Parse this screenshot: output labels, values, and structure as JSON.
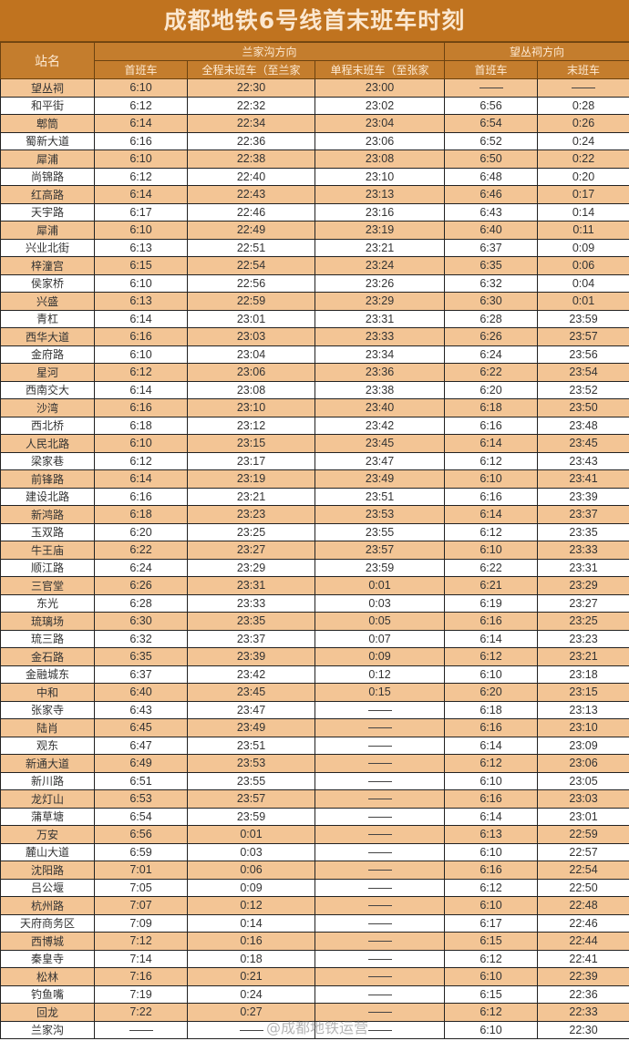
{
  "title": "成都地铁6号线首末班车时刻",
  "header": {
    "station": "站名",
    "dir1": "兰家沟方向",
    "dir2": "望丛祠方向",
    "dir1_first": "首班车",
    "dir1_last_full": "全程末班车（至兰家",
    "dir1_last_short": "单程末班车（至张家",
    "dir2_first": "首班车",
    "dir2_last": "末班车"
  },
  "colors": {
    "title_bg": "#c0731f",
    "header_bg": "#c47d2d",
    "row_alt": "#f3c595"
  },
  "rows": [
    [
      "望丛祠",
      "6:10",
      "22:30",
      "23:00",
      "—",
      "—"
    ],
    [
      "和平街",
      "6:12",
      "22:32",
      "23:02",
      "6:56",
      "0:28"
    ],
    [
      "郫筒",
      "6:14",
      "22:34",
      "23:04",
      "6:54",
      "0:26"
    ],
    [
      "蜀新大道",
      "6:16",
      "22:36",
      "23:06",
      "6:52",
      "0:24"
    ],
    [
      "犀浦",
      "6:10",
      "22:38",
      "23:08",
      "6:50",
      "0:22"
    ],
    [
      "尚锦路",
      "6:12",
      "22:40",
      "23:10",
      "6:48",
      "0:20"
    ],
    [
      "红高路",
      "6:14",
      "22:43",
      "23:13",
      "6:46",
      "0:17"
    ],
    [
      "天宇路",
      "6:17",
      "22:46",
      "23:16",
      "6:43",
      "0:14"
    ],
    [
      "犀浦",
      "6:10",
      "22:49",
      "23:19",
      "6:40",
      "0:11"
    ],
    [
      "兴业北街",
      "6:13",
      "22:51",
      "23:21",
      "6:37",
      "0:09"
    ],
    [
      "梓潼宫",
      "6:15",
      "22:54",
      "23:24",
      "6:35",
      "0:06"
    ],
    [
      "侯家桥",
      "6:10",
      "22:56",
      "23:26",
      "6:32",
      "0:04"
    ],
    [
      "兴盛",
      "6:13",
      "22:59",
      "23:29",
      "6:30",
      "0:01"
    ],
    [
      "青杠",
      "6:14",
      "23:01",
      "23:31",
      "6:28",
      "23:59"
    ],
    [
      "西华大道",
      "6:16",
      "23:03",
      "23:33",
      "6:26",
      "23:57"
    ],
    [
      "金府路",
      "6:10",
      "23:04",
      "23:34",
      "6:24",
      "23:56"
    ],
    [
      "星河",
      "6:12",
      "23:06",
      "23:36",
      "6:22",
      "23:54"
    ],
    [
      "西南交大",
      "6:14",
      "23:08",
      "23:38",
      "6:20",
      "23:52"
    ],
    [
      "沙湾",
      "6:16",
      "23:10",
      "23:40",
      "6:18",
      "23:50"
    ],
    [
      "西北桥",
      "6:18",
      "23:12",
      "23:42",
      "6:16",
      "23:48"
    ],
    [
      "人民北路",
      "6:10",
      "23:15",
      "23:45",
      "6:14",
      "23:45"
    ],
    [
      "梁家巷",
      "6:12",
      "23:17",
      "23:47",
      "6:12",
      "23:43"
    ],
    [
      "前锋路",
      "6:14",
      "23:19",
      "23:49",
      "6:10",
      "23:41"
    ],
    [
      "建设北路",
      "6:16",
      "23:21",
      "23:51",
      "6:16",
      "23:39"
    ],
    [
      "新鸿路",
      "6:18",
      "23:23",
      "23:53",
      "6:14",
      "23:37"
    ],
    [
      "玉双路",
      "6:20",
      "23:25",
      "23:55",
      "6:12",
      "23:35"
    ],
    [
      "牛王庙",
      "6:22",
      "23:27",
      "23:57",
      "6:10",
      "23:33"
    ],
    [
      "顺江路",
      "6:24",
      "23:29",
      "23:59",
      "6:22",
      "23:31"
    ],
    [
      "三官堂",
      "6:26",
      "23:31",
      "0:01",
      "6:21",
      "23:29"
    ],
    [
      "东光",
      "6:28",
      "23:33",
      "0:03",
      "6:19",
      "23:27"
    ],
    [
      "琉璃场",
      "6:30",
      "23:35",
      "0:05",
      "6:16",
      "23:25"
    ],
    [
      "琉三路",
      "6:32",
      "23:37",
      "0:07",
      "6:14",
      "23:23"
    ],
    [
      "金石路",
      "6:35",
      "23:39",
      "0:09",
      "6:12",
      "23:21"
    ],
    [
      "金融城东",
      "6:37",
      "23:42",
      "0:12",
      "6:10",
      "23:18"
    ],
    [
      "中和",
      "6:40",
      "23:45",
      "0:15",
      "6:20",
      "23:15"
    ],
    [
      "张家寺",
      "6:43",
      "23:47",
      "—",
      "6:18",
      "23:13"
    ],
    [
      "陆肖",
      "6:45",
      "23:49",
      "—",
      "6:16",
      "23:10"
    ],
    [
      "观东",
      "6:47",
      "23:51",
      "—",
      "6:14",
      "23:09"
    ],
    [
      "新通大道",
      "6:49",
      "23:53",
      "—",
      "6:12",
      "23:06"
    ],
    [
      "新川路",
      "6:51",
      "23:55",
      "—",
      "6:10",
      "23:05"
    ],
    [
      "龙灯山",
      "6:53",
      "23:57",
      "—",
      "6:16",
      "23:03"
    ],
    [
      "蒲草塘",
      "6:54",
      "23:59",
      "—",
      "6:14",
      "23:01"
    ],
    [
      "万安",
      "6:56",
      "0:01",
      "—",
      "6:13",
      "22:59"
    ],
    [
      "麓山大道",
      "6:59",
      "0:03",
      "—",
      "6:10",
      "22:57"
    ],
    [
      "沈阳路",
      "7:01",
      "0:06",
      "—",
      "6:16",
      "22:54"
    ],
    [
      "吕公堰",
      "7:05",
      "0:09",
      "—",
      "6:12",
      "22:50"
    ],
    [
      "杭州路",
      "7:07",
      "0:12",
      "—",
      "6:10",
      "22:48"
    ],
    [
      "天府商务区",
      "7:09",
      "0:14",
      "—",
      "6:17",
      "22:46"
    ],
    [
      "西博城",
      "7:12",
      "0:16",
      "—",
      "6:15",
      "22:44"
    ],
    [
      "秦皇寺",
      "7:14",
      "0:18",
      "—",
      "6:12",
      "22:41"
    ],
    [
      "松林",
      "7:16",
      "0:21",
      "—",
      "6:10",
      "22:39"
    ],
    [
      "钓鱼嘴",
      "7:19",
      "0:24",
      "—",
      "6:15",
      "22:36"
    ],
    [
      "回龙",
      "7:22",
      "0:27",
      "—",
      "6:12",
      "22:33"
    ],
    [
      "兰家沟",
      "—",
      "—",
      "—",
      "6:10",
      "22:30"
    ]
  ],
  "watermark": "@成都地铁运营"
}
